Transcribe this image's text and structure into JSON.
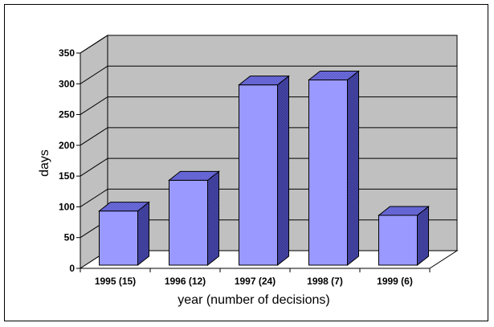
{
  "chart_data": {
    "type": "bar",
    "style": "3d-column",
    "title": "",
    "xlabel": "year (number of decisions)",
    "ylabel": "days",
    "categories": [
      "1995 (15)",
      "1996 (12)",
      "1997 (24)",
      "1998 (7)",
      "1999 (6)"
    ],
    "values": [
      88,
      138,
      293,
      301,
      81
    ],
    "ylim": [
      0,
      350
    ],
    "yticks": [
      0,
      50,
      100,
      150,
      200,
      250,
      300,
      350
    ],
    "grid": true,
    "legend": "none",
    "colors": {
      "bar_front": "#9999FF",
      "bar_side": "#4B4BA8",
      "bar_top": "#7070DC",
      "wall": "#C0C0C0",
      "outline": "#000000"
    }
  }
}
